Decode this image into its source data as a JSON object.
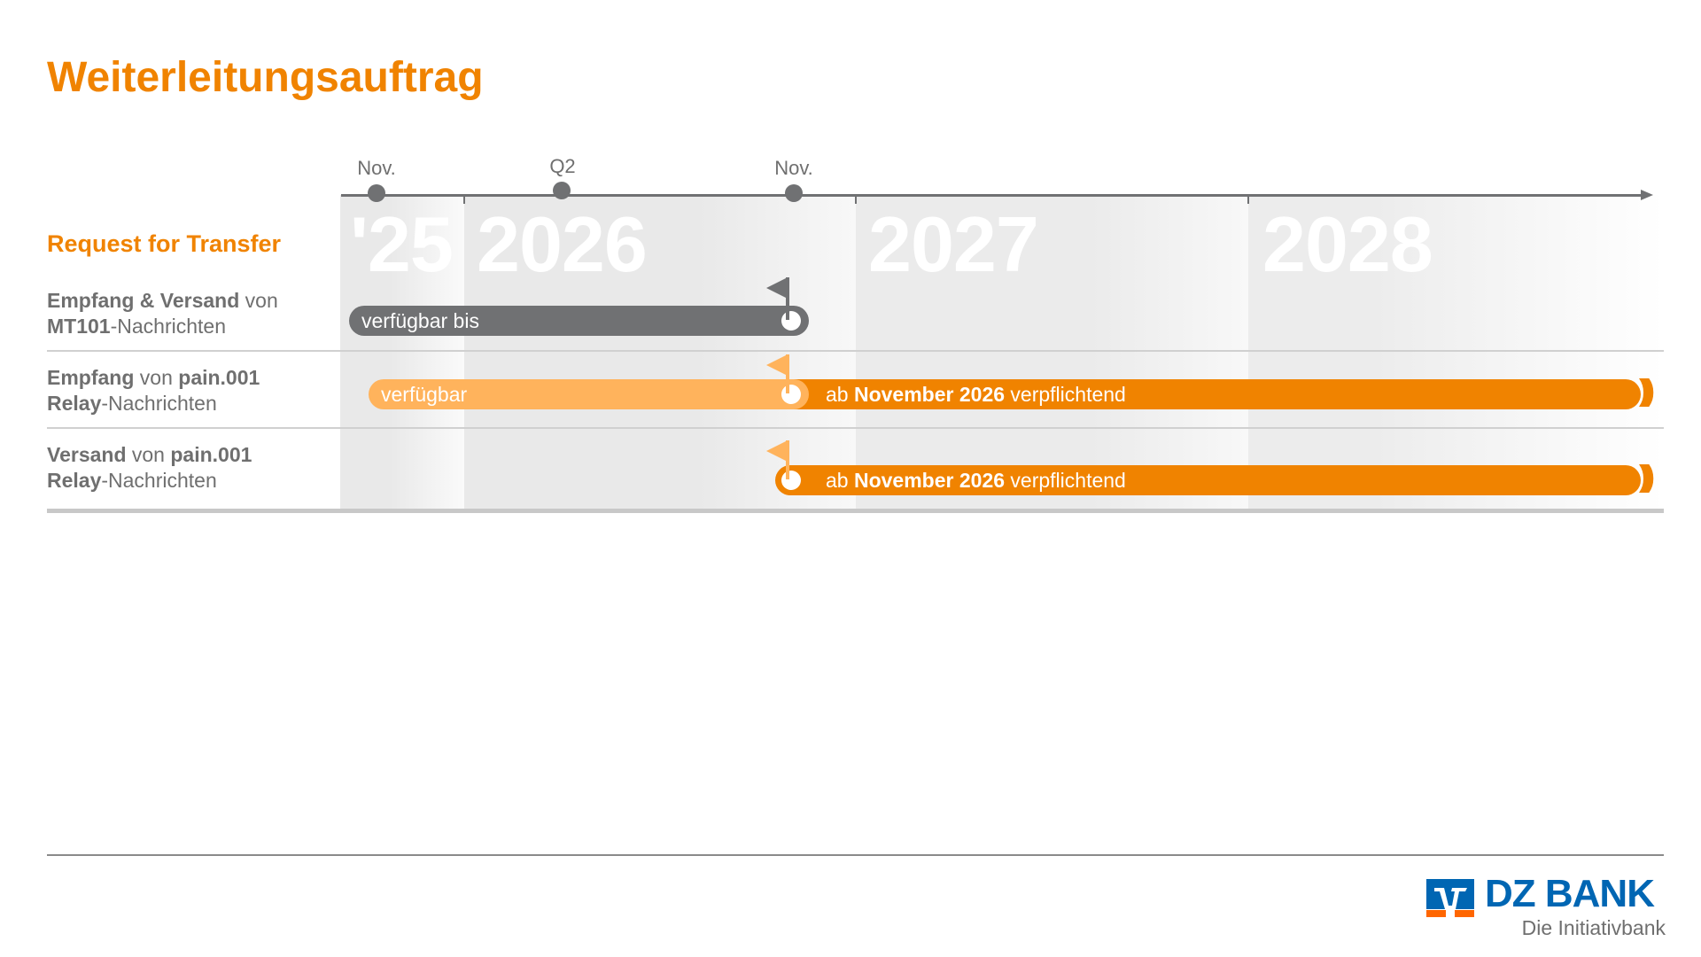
{
  "title": "Weiterleitungsauftrag",
  "section": "Request for Transfer",
  "timeline": {
    "years": [
      "'25",
      "2026",
      "2027",
      "2028"
    ],
    "milestones": [
      {
        "label": "Nov."
      },
      {
        "label": "Q2"
      },
      {
        "label": "Nov."
      }
    ]
  },
  "rows": [
    {
      "label_line1_bold": "Empfang & Versand",
      "label_line1_rest": " von",
      "label_line2_bold": "MT101",
      "label_line2_rest": "-Nachrichten",
      "bar_text": "verfügbar bis"
    },
    {
      "label_line1_bold": "Empfang",
      "label_line1_mid": " von ",
      "label_line1_bold2": "pain.001",
      "label_line2_bold": "Relay",
      "label_line2_rest": "-Nachrichten",
      "bar_light_text": "verfügbar",
      "bar_pre": "ab ",
      "bar_bold": "November 2026",
      "bar_post": " verpflichtend"
    },
    {
      "label_line1_bold": "Versand",
      "label_line1_mid": " von ",
      "label_line1_bold2": "pain.001",
      "label_line2_bold": "Relay",
      "label_line2_rest": "-Nachrichten",
      "bar_pre": "ab ",
      "bar_bold": "November 2026",
      "bar_post": " verpflichtend"
    }
  ],
  "colors": {
    "accent": "#f08300",
    "accent_light": "#ffb35c",
    "gray_bar": "#707173",
    "logo_blue": "#0066b3",
    "logo_orange": "#ff6600"
  },
  "logo": {
    "name": "DZ BANK",
    "tagline": "Die Initiativbank"
  }
}
